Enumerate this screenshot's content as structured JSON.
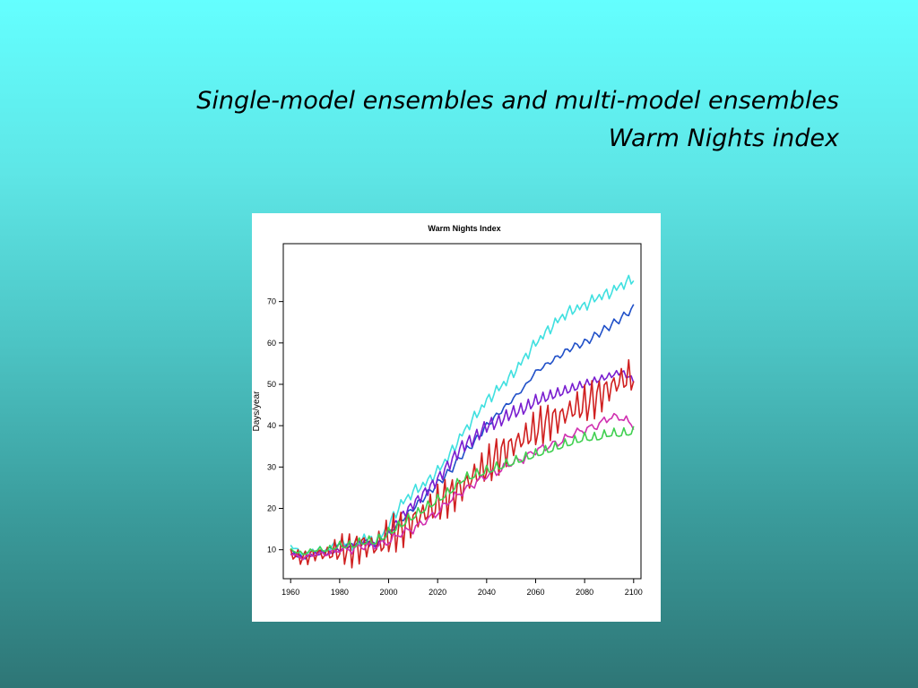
{
  "slide": {
    "title_line1": "Single-model ensembles and multi-model ensembles",
    "title_line2": "Warm Nights index"
  },
  "chart_data": {
    "type": "line",
    "title": "Warm Nights Index",
    "xlabel": "",
    "ylabel": "Days/year",
    "xlim": [
      1957,
      2103
    ],
    "ylim": [
      3,
      84
    ],
    "xticks": [
      1960,
      1980,
      2000,
      2020,
      2040,
      2060,
      2080,
      2100
    ],
    "yticks": [
      10,
      20,
      30,
      40,
      50,
      60,
      70
    ],
    "grid": false,
    "legend": "none",
    "series": [
      {
        "color": "#40e0e0",
        "x": [
          1960,
          1965,
          1970,
          1975,
          1980,
          1985,
          1990,
          1995,
          2000,
          2005,
          2010,
          2015,
          2020,
          2025,
          2030,
          2035,
          2040,
          2045,
          2050,
          2055,
          2060,
          2065,
          2070,
          2075,
          2080,
          2085,
          2090,
          2095,
          2100
        ],
        "y": [
          11,
          9,
          10,
          10,
          12,
          11,
          13,
          12,
          16,
          21,
          24,
          26,
          29,
          33,
          38,
          42,
          46,
          49,
          52,
          56,
          60,
          63,
          66,
          68,
          69,
          71,
          72,
          74,
          75.5
        ],
        "noise": 1.6,
        "period": 3
      },
      {
        "color": "#2050c8",
        "x": [
          1960,
          1965,
          1970,
          1975,
          1980,
          1985,
          1990,
          1995,
          2000,
          2005,
          2010,
          2015,
          2020,
          2025,
          2030,
          2035,
          2040,
          2045,
          2050,
          2055,
          2060,
          2065,
          2070,
          2075,
          2080,
          2085,
          2090,
          2095,
          2100
        ],
        "y": [
          10,
          8,
          9,
          10,
          11,
          11,
          12,
          11,
          14,
          17,
          20,
          23,
          26,
          29,
          33,
          36,
          40,
          43,
          46,
          49,
          53,
          55,
          57,
          59,
          60,
          62,
          64,
          66,
          68.5
        ],
        "noise": 1.0,
        "period": 4
      },
      {
        "color": "#7a1fd0",
        "x": [
          1960,
          1965,
          1970,
          1975,
          1980,
          1985,
          1990,
          1995,
          2000,
          2005,
          2010,
          2015,
          2020,
          2025,
          2030,
          2035,
          2040,
          2045,
          2050,
          2055,
          2060,
          2065,
          2070,
          2075,
          2080,
          2085,
          2090,
          2095,
          2100
        ],
        "y": [
          9,
          8,
          9,
          9,
          10,
          11,
          12,
          11,
          14,
          18,
          21,
          24,
          27,
          31,
          35,
          37,
          40,
          41,
          43,
          44,
          46,
          47,
          48,
          49,
          50,
          51,
          52,
          53,
          51
        ],
        "noise": 1.8,
        "period": 3
      },
      {
        "color": "#d02020",
        "x": [
          1960,
          1965,
          1970,
          1975,
          1980,
          1985,
          1990,
          1995,
          2000,
          2005,
          2010,
          2015,
          2020,
          2025,
          2030,
          2035,
          2040,
          2045,
          2050,
          2055,
          2060,
          2065,
          2070,
          2075,
          2080,
          2085,
          2090,
          2095,
          2100
        ],
        "y": [
          9,
          8,
          9,
          9,
          10,
          10,
          11,
          11,
          13,
          15,
          17,
          19,
          21,
          23,
          25,
          28,
          30,
          33,
          35,
          37,
          39,
          41,
          42,
          44,
          45,
          47,
          49,
          51,
          52
        ],
        "noise": 5.5,
        "period": 3
      },
      {
        "color": "#d030b0",
        "x": [
          1960,
          1965,
          1970,
          1975,
          1980,
          1985,
          1990,
          1995,
          2000,
          2005,
          2010,
          2015,
          2020,
          2025,
          2030,
          2035,
          2040,
          2045,
          2050,
          2055,
          2060,
          2065,
          2070,
          2075,
          2080,
          2085,
          2090,
          2095,
          2100
        ],
        "y": [
          9,
          8,
          9,
          9,
          10,
          10,
          11,
          11,
          12,
          14,
          15,
          17,
          19,
          22,
          24,
          26,
          28,
          29,
          31,
          32,
          34,
          35,
          36,
          38,
          39,
          40,
          42,
          42,
          40
        ],
        "noise": 1.2,
        "period": 5
      },
      {
        "color": "#40d050",
        "x": [
          1960,
          1965,
          1970,
          1975,
          1980,
          1985,
          1990,
          1995,
          2000,
          2005,
          2010,
          2015,
          2020,
          2025,
          2030,
          2035,
          2040,
          2045,
          2050,
          2055,
          2060,
          2065,
          2070,
          2075,
          2080,
          2085,
          2090,
          2095,
          2100
        ],
        "y": [
          10,
          9,
          10,
          10,
          11,
          11,
          12,
          12,
          14,
          16,
          18,
          20,
          22,
          24,
          27,
          28,
          29,
          30,
          31,
          32,
          33,
          34,
          35,
          36,
          37,
          37,
          38,
          38,
          38.5
        ],
        "noise": 1.4,
        "period": 4
      }
    ]
  }
}
